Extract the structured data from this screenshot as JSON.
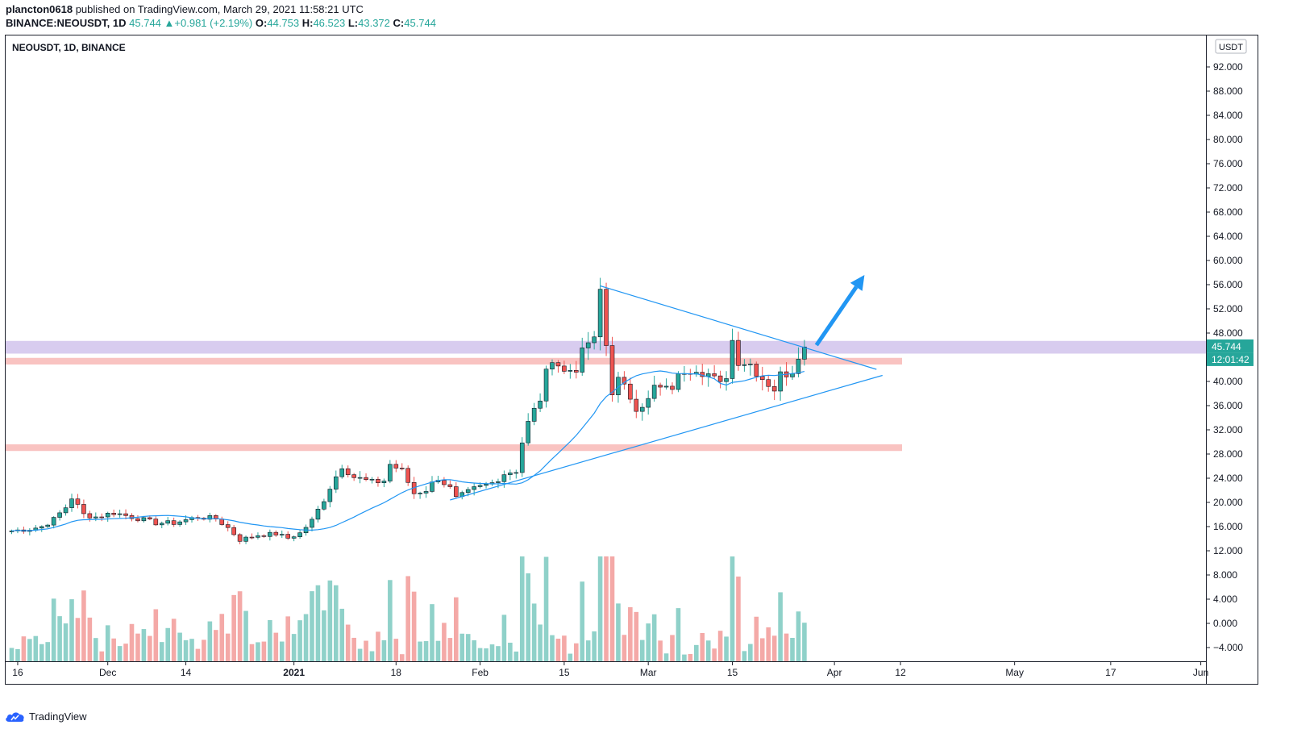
{
  "header": {
    "author": "plancton0618",
    "published_text": " published on TradingView.com, March 29, 2021 11:58:21 UTC",
    "symbol": "BINANCE:NEOUSDT, 1D",
    "last": "45.744",
    "change": "+0.981 (+2.19%)",
    "o_label": "O:",
    "o": "44.753",
    "h_label": "H:",
    "h": "46.523",
    "l_label": "L:",
    "l": "43.372",
    "c_label": "C:",
    "c": "45.744"
  },
  "legend_title": "NEOUSDT, 1D, BINANCE",
  "currency_badge": "USDT",
  "price_badge": "45.744",
  "countdown_badge": "12:01:42",
  "footer_brand": "TradingView",
  "colors": {
    "up": "#26a69a",
    "down": "#ef5350",
    "vol_up": "#8fd1c9",
    "vol_down": "#f4a9a7",
    "ma": "#2196f3",
    "resistance_zone": "#d6c9ee",
    "support_band": "#f8bcba",
    "trendline": "#2196f3"
  },
  "chart_data": {
    "type": "candlestick",
    "symbol": "NEOUSDT",
    "interval": "1D",
    "exchange": "BINANCE",
    "y_axis": {
      "range": [
        -6,
        94
      ],
      "ticks": [
        "92.000",
        "88.000",
        "84.000",
        "80.000",
        "76.000",
        "72.000",
        "68.000",
        "64.000",
        "60.000",
        "56.000",
        "52.000",
        "48.000",
        "44.000",
        "40.000",
        "36.000",
        "32.000",
        "28.000",
        "24.000",
        "20.000",
        "16.000",
        "12.000",
        "8.000",
        "4.000",
        "0.000",
        "−4.000"
      ]
    },
    "x_axis": {
      "start_date": "2020-11-15",
      "labels": [
        {
          "text": "16",
          "day": 1
        },
        {
          "text": "Dec",
          "day": 16
        },
        {
          "text": "14",
          "day": 29
        },
        {
          "text": "2021",
          "day": 47,
          "bold": true
        },
        {
          "text": "18",
          "day": 64
        },
        {
          "text": "Feb",
          "day": 78
        },
        {
          "text": "15",
          "day": 92
        },
        {
          "text": "Mar",
          "day": 106
        },
        {
          "text": "15",
          "day": 120
        },
        {
          "text": "Apr",
          "day": 137
        },
        {
          "text": "12",
          "day": 148
        },
        {
          "text": "May",
          "day": 167
        },
        {
          "text": "17",
          "day": 183
        },
        {
          "text": "Jun",
          "day": 198
        }
      ]
    },
    "candles_anchor": [
      [
        0,
        15.3
      ],
      [
        3,
        15.6
      ],
      [
        5,
        16.0
      ],
      [
        7,
        17.2
      ],
      [
        9,
        19.2
      ],
      [
        10,
        20.8
      ],
      [
        12,
        18.0
      ],
      [
        14,
        17.6
      ],
      [
        17,
        18.3
      ],
      [
        20,
        17.6
      ],
      [
        24,
        16.6
      ],
      [
        27,
        16.6
      ],
      [
        31,
        17.6
      ],
      [
        34,
        17.3
      ],
      [
        36,
        15.8
      ],
      [
        38,
        13.8
      ],
      [
        41,
        14.6
      ],
      [
        44,
        14.8
      ],
      [
        46,
        14.1
      ],
      [
        48,
        14.9
      ],
      [
        50,
        17.0
      ],
      [
        52,
        20.5
      ],
      [
        53,
        22.5
      ],
      [
        55,
        26.1
      ],
      [
        57,
        24.2
      ],
      [
        60,
        23.3
      ],
      [
        62,
        23.6
      ],
      [
        63,
        26.3
      ],
      [
        65,
        25.2
      ],
      [
        67,
        21.5
      ],
      [
        69,
        22.1
      ],
      [
        71,
        24.1
      ],
      [
        73,
        22.3
      ],
      [
        74,
        20.6
      ],
      [
        77,
        22.2
      ],
      [
        80,
        23.2
      ],
      [
        82,
        24.8
      ],
      [
        84,
        25.3
      ],
      [
        85,
        30.0
      ],
      [
        86,
        33.1
      ],
      [
        88,
        37.2
      ],
      [
        89,
        41.1
      ],
      [
        90,
        44.2
      ],
      [
        92,
        41.5
      ],
      [
        94,
        42.4
      ],
      [
        96,
        46.5
      ],
      [
        97,
        46.5
      ],
      [
        98,
        55.0
      ],
      [
        99,
        46.0
      ],
      [
        100,
        38.5
      ],
      [
        101,
        40.1
      ],
      [
        103,
        37.5
      ],
      [
        104,
        35.9
      ],
      [
        106,
        36.8
      ],
      [
        107,
        39.0
      ],
      [
        109,
        38.5
      ],
      [
        110,
        39.2
      ],
      [
        112,
        42.0
      ],
      [
        114,
        42.4
      ],
      [
        116,
        41.2
      ],
      [
        118,
        39.3
      ],
      [
        119,
        41.2
      ],
      [
        120,
        46.8
      ],
      [
        121,
        43.6
      ],
      [
        123,
        42.9
      ],
      [
        125,
        40.6
      ],
      [
        127,
        38.8
      ],
      [
        128,
        41.0
      ],
      [
        130,
        42.0
      ],
      [
        131,
        44.8
      ],
      [
        132,
        45.7
      ]
    ],
    "ma_period": 20,
    "volume_scale_note": "volume plotted as relative bars at the bottom of the pane",
    "annotations": {
      "resistance_zone": {
        "from": 44.6,
        "to": 46.7
      },
      "support_band_upper": {
        "from": 42.8,
        "to": 43.9
      },
      "support_band_lower": {
        "from": 28.5,
        "to": 29.6
      },
      "triangle_upper": {
        "from": {
          "day": 98,
          "price": 55.8
        },
        "to": {
          "day": 144,
          "price": 42.0
        }
      },
      "triangle_lower": {
        "from": {
          "day": 73,
          "price": 20.4
        },
        "to": {
          "day": 145,
          "price": 41.0
        }
      },
      "arrow": {
        "from": {
          "day": 134,
          "price": 46.0
        },
        "to": {
          "day": 142,
          "price": 57.6
        }
      }
    }
  }
}
